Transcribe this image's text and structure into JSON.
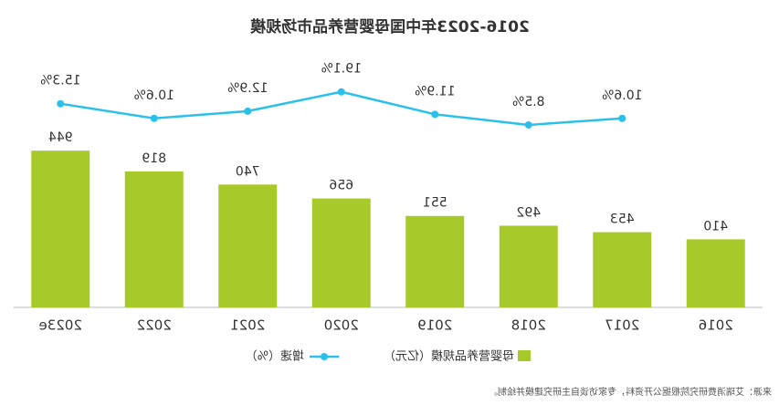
{
  "chart_data": {
    "type": "bar_line",
    "title": "2016-2023年中国母婴营养品市场规模",
    "categories": [
      "2016",
      "2017",
      "2018",
      "2019",
      "2020",
      "2021",
      "2022",
      "2023e"
    ],
    "series": [
      {
        "name": "母婴营养品规模（亿元）",
        "type": "bar",
        "color": "#a8c92a",
        "values": [
          410,
          453,
          492,
          551,
          656,
          740,
          819,
          944
        ]
      },
      {
        "name": "增速（%）",
        "type": "line",
        "axis": "y2",
        "color": "#29c0ea",
        "values": [
          null,
          10.6,
          8.5,
          11.9,
          19.1,
          12.9,
          10.6,
          15.3
        ],
        "value_labels": [
          null,
          "10.6%",
          "8.5%",
          "11.9%",
          "19.1%",
          "12.9%",
          "10.6%",
          "15.3%"
        ]
      }
    ],
    "ylim": [
      0,
      1000
    ],
    "y2lim": [
      -50,
      31
    ],
    "source": "来源：艾瑞消费研究院根据公开资料，专家访谈自主研究建模并绘制。",
    "mirrored": true
  }
}
